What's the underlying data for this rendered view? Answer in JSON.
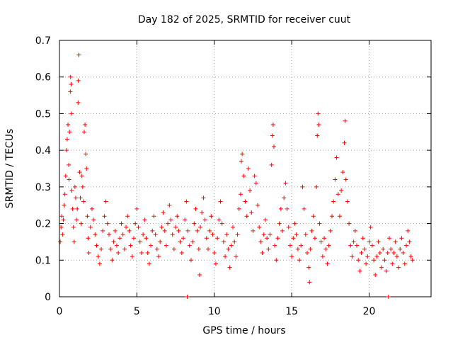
{
  "chart_data": {
    "type": "scatter",
    "title": "Day 182 of 2025, SRMTID for receiver cuut",
    "xlabel": "GPS time / hours",
    "ylabel": "SRMTID / TECUs",
    "xlim": [
      0,
      24
    ],
    "ylim": [
      0,
      0.7
    ],
    "xticks": [
      0,
      5,
      10,
      15,
      20
    ],
    "yticks": [
      0,
      0.1,
      0.2,
      0.3,
      0.4,
      0.5,
      0.6,
      0.7
    ],
    "xtick_labels": [
      "0",
      "5",
      "10",
      "15",
      "20"
    ],
    "ytick_labels": [
      "0",
      "0.1",
      "0.2",
      "0.3",
      "0.4",
      "0.5",
      "0.6",
      "0.7"
    ],
    "grid": true,
    "marker": "+",
    "color": "#ff0000",
    "series": [
      {
        "name": "SRMTID",
        "points": [
          [
            0.05,
            0.15
          ],
          [
            0.1,
            0.19
          ],
          [
            0.15,
            0.22
          ],
          [
            0.2,
            0.17
          ],
          [
            0.25,
            0.21
          ],
          [
            0.3,
            0.25
          ],
          [
            0.35,
            0.28
          ],
          [
            0.4,
            0.33
          ],
          [
            0.45,
            0.4
          ],
          [
            0.5,
            0.43
          ],
          [
            0.55,
            0.47
          ],
          [
            0.6,
            0.36
          ],
          [
            0.62,
            0.32
          ],
          [
            0.65,
            0.45
          ],
          [
            0.7,
            0.56
          ],
          [
            0.72,
            0.6
          ],
          [
            0.75,
            0.58
          ],
          [
            0.78,
            0.5
          ],
          [
            0.8,
            0.29
          ],
          [
            0.85,
            0.24
          ],
          [
            0.9,
            0.19
          ],
          [
            0.95,
            0.15
          ],
          [
            1.0,
            0.3
          ],
          [
            1.05,
            0.27
          ],
          [
            1.1,
            0.21
          ],
          [
            1.15,
            0.24
          ],
          [
            1.2,
            0.53
          ],
          [
            1.22,
            0.59
          ],
          [
            1.25,
            0.66
          ],
          [
            1.3,
            0.34
          ],
          [
            1.35,
            0.27
          ],
          [
            1.4,
            0.2
          ],
          [
            1.45,
            0.33
          ],
          [
            1.5,
            0.3
          ],
          [
            1.55,
            0.26
          ],
          [
            1.6,
            0.45
          ],
          [
            1.65,
            0.47
          ],
          [
            1.7,
            0.39
          ],
          [
            1.75,
            0.35
          ],
          [
            1.8,
            0.22
          ],
          [
            1.85,
            0.16
          ],
          [
            1.9,
            0.12
          ],
          [
            2.0,
            0.19
          ],
          [
            2.1,
            0.24
          ],
          [
            2.2,
            0.21
          ],
          [
            2.3,
            0.17
          ],
          [
            2.4,
            0.14
          ],
          [
            2.5,
            0.11
          ],
          [
            2.6,
            0.09
          ],
          [
            2.7,
            0.13
          ],
          [
            2.8,
            0.18
          ],
          [
            2.9,
            0.22
          ],
          [
            3.0,
            0.26
          ],
          [
            3.1,
            0.2
          ],
          [
            3.2,
            0.17
          ],
          [
            3.3,
            0.13
          ],
          [
            3.4,
            0.1
          ],
          [
            3.5,
            0.15
          ],
          [
            3.6,
            0.18
          ],
          [
            3.7,
            0.14
          ],
          [
            3.8,
            0.12
          ],
          [
            3.9,
            0.16
          ],
          [
            4.0,
            0.2
          ],
          [
            4.1,
            0.17
          ],
          [
            4.2,
            0.13
          ],
          [
            4.3,
            0.19
          ],
          [
            4.4,
            0.22
          ],
          [
            4.5,
            0.18
          ],
          [
            4.6,
            0.14
          ],
          [
            4.7,
            0.11
          ],
          [
            4.8,
            0.16
          ],
          [
            4.9,
            0.2
          ],
          [
            5.0,
            0.24
          ],
          [
            5.1,
            0.19
          ],
          [
            5.2,
            0.15
          ],
          [
            5.3,
            0.12
          ],
          [
            5.4,
            0.17
          ],
          [
            5.5,
            0.21
          ],
          [
            5.6,
            0.16
          ],
          [
            5.7,
            0.12
          ],
          [
            5.8,
            0.09
          ],
          [
            5.9,
            0.14
          ],
          [
            6.0,
            0.18
          ],
          [
            6.1,
            0.22
          ],
          [
            6.2,
            0.17
          ],
          [
            6.3,
            0.13
          ],
          [
            6.4,
            0.11
          ],
          [
            6.5,
            0.15
          ],
          [
            6.6,
            0.19
          ],
          [
            6.7,
            0.23
          ],
          [
            6.8,
            0.18
          ],
          [
            6.9,
            0.14
          ],
          [
            7.0,
            0.2
          ],
          [
            7.1,
            0.25
          ],
          [
            7.2,
            0.21
          ],
          [
            7.3,
            0.17
          ],
          [
            7.4,
            0.13
          ],
          [
            7.5,
            0.19
          ],
          [
            7.6,
            0.22
          ],
          [
            7.7,
            0.18
          ],
          [
            7.8,
            0.15
          ],
          [
            7.9,
            0.12
          ],
          [
            8.0,
            0.16
          ],
          [
            8.1,
            0.21
          ],
          [
            8.2,
            0.26
          ],
          [
            8.25,
            0.0
          ],
          [
            8.3,
            0.18
          ],
          [
            8.4,
            0.14
          ],
          [
            8.5,
            0.1
          ],
          [
            8.6,
            0.15
          ],
          [
            8.7,
            0.2
          ],
          [
            8.8,
            0.24
          ],
          [
            8.9,
            0.18
          ],
          [
            9.0,
            0.13
          ],
          [
            9.05,
            0.06
          ],
          [
            9.1,
            0.19
          ],
          [
            9.2,
            0.23
          ],
          [
            9.3,
            0.27
          ],
          [
            9.4,
            0.21
          ],
          [
            9.5,
            0.16
          ],
          [
            9.6,
            0.13
          ],
          [
            9.7,
            0.18
          ],
          [
            9.8,
            0.22
          ],
          [
            9.9,
            0.17
          ],
          [
            10.0,
            0.12
          ],
          [
            10.1,
            0.09
          ],
          [
            10.2,
            0.16
          ],
          [
            10.3,
            0.21
          ],
          [
            10.4,
            0.26
          ],
          [
            10.5,
            0.2
          ],
          [
            10.6,
            0.15
          ],
          [
            10.7,
            0.11
          ],
          [
            10.8,
            0.17
          ],
          [
            10.9,
            0.13
          ],
          [
            11.0,
            0.08
          ],
          [
            11.1,
            0.14
          ],
          [
            11.2,
            0.19
          ],
          [
            11.3,
            0.15
          ],
          [
            11.4,
            0.11
          ],
          [
            11.5,
            0.17
          ],
          [
            11.6,
            0.24
          ],
          [
            11.7,
            0.28
          ],
          [
            11.75,
            0.37
          ],
          [
            11.8,
            0.39
          ],
          [
            11.9,
            0.33
          ],
          [
            12.0,
            0.26
          ],
          [
            12.1,
            0.22
          ],
          [
            12.2,
            0.35
          ],
          [
            12.3,
            0.29
          ],
          [
            12.4,
            0.23
          ],
          [
            12.5,
            0.18
          ],
          [
            12.6,
            0.33
          ],
          [
            12.7,
            0.31
          ],
          [
            12.8,
            0.25
          ],
          [
            12.9,
            0.19
          ],
          [
            13.0,
            0.15
          ],
          [
            13.1,
            0.12
          ],
          [
            13.2,
            0.17
          ],
          [
            13.3,
            0.21
          ],
          [
            13.4,
            0.16
          ],
          [
            13.5,
            0.13
          ],
          [
            13.6,
            0.17
          ],
          [
            13.7,
            0.36
          ],
          [
            13.75,
            0.44
          ],
          [
            13.8,
            0.47
          ],
          [
            13.85,
            0.41
          ],
          [
            13.9,
            0.14
          ],
          [
            14.0,
            0.1
          ],
          [
            14.1,
            0.16
          ],
          [
            14.2,
            0.2
          ],
          [
            14.3,
            0.24
          ],
          [
            14.4,
            0.18
          ],
          [
            14.5,
            0.27
          ],
          [
            14.6,
            0.31
          ],
          [
            14.7,
            0.24
          ],
          [
            14.8,
            0.19
          ],
          [
            14.9,
            0.14
          ],
          [
            15.0,
            0.11
          ],
          [
            15.1,
            0.16
          ],
          [
            15.2,
            0.2
          ],
          [
            15.3,
            0.17
          ],
          [
            15.4,
            0.13
          ],
          [
            15.5,
            0.1
          ],
          [
            15.6,
            0.14
          ],
          [
            15.7,
            0.3
          ],
          [
            15.8,
            0.24
          ],
          [
            15.9,
            0.17
          ],
          [
            16.0,
            0.12
          ],
          [
            16.1,
            0.08
          ],
          [
            16.15,
            0.04
          ],
          [
            16.2,
            0.13
          ],
          [
            16.3,
            0.18
          ],
          [
            16.4,
            0.22
          ],
          [
            16.5,
            0.16
          ],
          [
            16.6,
            0.3
          ],
          [
            16.65,
            0.44
          ],
          [
            16.7,
            0.5
          ],
          [
            16.75,
            0.47
          ],
          [
            16.8,
            0.2
          ],
          [
            16.9,
            0.15
          ],
          [
            17.0,
            0.11
          ],
          [
            17.1,
            0.16
          ],
          [
            17.2,
            0.13
          ],
          [
            17.3,
            0.09
          ],
          [
            17.4,
            0.14
          ],
          [
            17.5,
            0.18
          ],
          [
            17.6,
            0.22
          ],
          [
            17.7,
            0.26
          ],
          [
            17.8,
            0.32
          ],
          [
            17.9,
            0.38
          ],
          [
            18.0,
            0.28
          ],
          [
            18.1,
            0.22
          ],
          [
            18.2,
            0.29
          ],
          [
            18.3,
            0.34
          ],
          [
            18.4,
            0.42
          ],
          [
            18.45,
            0.48
          ],
          [
            18.5,
            0.32
          ],
          [
            18.6,
            0.26
          ],
          [
            18.7,
            0.2
          ],
          [
            18.8,
            0.14
          ],
          [
            18.9,
            0.11
          ],
          [
            19.0,
            0.15
          ],
          [
            19.1,
            0.18
          ],
          [
            19.2,
            0.14
          ],
          [
            19.3,
            0.1
          ],
          [
            19.4,
            0.07
          ],
          [
            19.5,
            0.12
          ],
          [
            19.6,
            0.16
          ],
          [
            19.7,
            0.13
          ],
          [
            19.8,
            0.09
          ],
          [
            19.9,
            0.11
          ],
          [
            20.0,
            0.15
          ],
          [
            20.1,
            0.19
          ],
          [
            20.2,
            0.14
          ],
          [
            20.3,
            0.1
          ],
          [
            20.4,
            0.06
          ],
          [
            20.5,
            0.11
          ],
          [
            20.6,
            0.15
          ],
          [
            20.7,
            0.12
          ],
          [
            20.8,
            0.08
          ],
          [
            20.9,
            0.13
          ],
          [
            21.0,
            0.1
          ],
          [
            21.1,
            0.07
          ],
          [
            21.2,
            0.12
          ],
          [
            21.25,
            0.0
          ],
          [
            21.3,
            0.16
          ],
          [
            21.4,
            0.13
          ],
          [
            21.5,
            0.09
          ],
          [
            21.6,
            0.12
          ],
          [
            21.7,
            0.15
          ],
          [
            21.8,
            0.11
          ],
          [
            21.9,
            0.08
          ],
          [
            22.0,
            0.13
          ],
          [
            22.1,
            0.16
          ],
          [
            22.2,
            0.12
          ],
          [
            22.3,
            0.09
          ],
          [
            22.4,
            0.14
          ],
          [
            22.5,
            0.18
          ],
          [
            22.6,
            0.15
          ],
          [
            22.7,
            0.11
          ],
          [
            22.8,
            0.1
          ]
        ]
      }
    ]
  }
}
